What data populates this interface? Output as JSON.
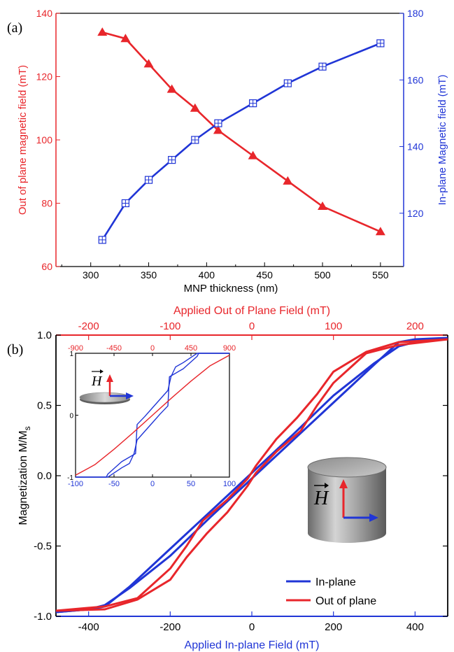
{
  "colors": {
    "out_of_plane": "#e8262b",
    "in_plane": "#2035d6",
    "axis": "#000000",
    "cyl_dark": "#5e5e5e",
    "cyl_light": "#cfcfcf"
  },
  "chart_data": [
    {
      "panel_label": "(a)",
      "type": "line",
      "xlabel": "MNP thickness (nm)",
      "xlim": [
        270,
        570
      ],
      "xticks": [
        300,
        350,
        400,
        450,
        500,
        550
      ],
      "ylabel_left": "Out of plane magnetic field (mT)",
      "ylim_left": [
        60,
        140
      ],
      "yticks_left": [
        60,
        80,
        100,
        120,
        140
      ],
      "ylabel_right": "In-plane Magnetic field (mT)",
      "ylim_right": [
        104,
        180
      ],
      "yticks_right": [
        120,
        140,
        160,
        180
      ],
      "series": [
        {
          "axis": "left",
          "marker": "filled-triangle",
          "x": [
            310,
            330,
            350,
            370,
            390,
            410,
            440,
            470,
            500,
            550
          ],
          "values": [
            134,
            132,
            124,
            116,
            110,
            103,
            95,
            87,
            79,
            71
          ]
        },
        {
          "axis": "right",
          "marker": "boxed-cross",
          "x": [
            310,
            330,
            350,
            370,
            390,
            410,
            440,
            470,
            500,
            550
          ],
          "values": [
            112,
            123,
            130,
            136,
            142,
            147,
            153,
            159,
            164,
            171
          ]
        }
      ]
    },
    {
      "panel_label": "(b)",
      "type": "line",
      "xlabel_bottom": "Applied In-plane Field (mT)",
      "xlim_bottom": [
        -480,
        480
      ],
      "xticks_bottom": [
        -400,
        -200,
        0,
        200,
        400
      ],
      "xlabel_top": "Applied Out of Plane Field (mT)",
      "xlim_top": [
        -240,
        240
      ],
      "xticks_top": [
        -200,
        -100,
        0,
        100,
        200
      ],
      "ylabel": "Magnetization M/M",
      "ylabel_sub": "s",
      "ylim": [
        -1.0,
        1.0
      ],
      "yticks": [
        "1.0",
        "0.5",
        "0.0",
        "-0.5",
        "-1.0"
      ],
      "legend_position": "bottom-right",
      "field_symbol": "H",
      "series": [
        {
          "name": "In-plane",
          "axis": "bottom",
          "branch_desc": [
            [
              480,
              0.98
            ],
            [
              400,
              0.97
            ],
            [
              360,
              0.95
            ],
            [
              300,
              0.79
            ],
            [
              200,
              0.52
            ],
            [
              100,
              0.25
            ],
            [
              0,
              -0.02
            ],
            [
              -100,
              -0.29
            ],
            [
              -200,
              -0.57
            ],
            [
              -300,
              -0.8
            ],
            [
              -360,
              -0.92
            ],
            [
              -400,
              -0.95
            ],
            [
              -480,
              -0.97
            ]
          ],
          "branch_asc": [
            [
              -480,
              -0.97
            ],
            [
              -400,
              -0.95
            ],
            [
              -360,
              -0.93
            ],
            [
              -300,
              -0.79
            ],
            [
              -200,
              -0.52
            ],
            [
              -100,
              -0.25
            ],
            [
              0,
              0.02
            ],
            [
              100,
              0.29
            ],
            [
              200,
              0.57
            ],
            [
              300,
              0.8
            ],
            [
              360,
              0.92
            ],
            [
              400,
              0.95
            ],
            [
              480,
              0.98
            ]
          ]
        },
        {
          "name": "Out of plane",
          "axis": "top",
          "branch_desc": [
            [
              240,
              0.97
            ],
            [
              180,
              0.95
            ],
            [
              140,
              0.88
            ],
            [
              100,
              0.74
            ],
            [
              80,
              0.58
            ],
            [
              55,
              0.41
            ],
            [
              30,
              0.26
            ],
            [
              5,
              0.07
            ],
            [
              -5,
              -0.02
            ],
            [
              -30,
              -0.17
            ],
            [
              -60,
              -0.32
            ],
            [
              -80,
              -0.5
            ],
            [
              -100,
              -0.66
            ],
            [
              -140,
              -0.87
            ],
            [
              -180,
              -0.93
            ],
            [
              -240,
              -0.96
            ]
          ],
          "branch_asc": [
            [
              -240,
              -0.96
            ],
            [
              -180,
              -0.95
            ],
            [
              -140,
              -0.88
            ],
            [
              -100,
              -0.74
            ],
            [
              -80,
              -0.58
            ],
            [
              -55,
              -0.41
            ],
            [
              -30,
              -0.26
            ],
            [
              -5,
              -0.07
            ],
            [
              5,
              0.02
            ],
            [
              30,
              0.17
            ],
            [
              60,
              0.32
            ],
            [
              80,
              0.5
            ],
            [
              100,
              0.66
            ],
            [
              140,
              0.87
            ],
            [
              180,
              0.93
            ],
            [
              240,
              0.97
            ]
          ]
        }
      ],
      "inset": {
        "xlim_bottom": [
          -100,
          100
        ],
        "xticks_bottom": [
          -100,
          -50,
          0,
          50,
          100
        ],
        "xlim_top": [
          -900,
          900
        ],
        "xticks_top": [
          -900,
          -450,
          0,
          450,
          900
        ],
        "ylim": [
          -1,
          1
        ],
        "yticks": [
          -1,
          0,
          1
        ],
        "series": [
          {
            "name": "In-plane",
            "axis": "bottom",
            "branch_desc": [
              [
                100,
                1.0
              ],
              [
                60,
                1.0
              ],
              [
                58,
                0.95
              ],
              [
                40,
                0.75
              ],
              [
                22,
                0.62
              ],
              [
                20,
                0.15
              ],
              [
                10,
                0.02
              ],
              [
                0,
                -0.12
              ],
              [
                -20,
                -0.4
              ],
              [
                -24,
                -0.62
              ],
              [
                -30,
                -0.78
              ],
              [
                -40,
                -0.85
              ],
              [
                -52,
                -0.95
              ],
              [
                -58,
                -1.0
              ],
              [
                -100,
                -1.0
              ]
            ],
            "branch_asc": [
              [
                -100,
                -1.0
              ],
              [
                -60,
                -1.0
              ],
              [
                -58,
                -0.95
              ],
              [
                -40,
                -0.75
              ],
              [
                -22,
                -0.62
              ],
              [
                -20,
                -0.15
              ],
              [
                -10,
                -0.02
              ],
              [
                0,
                0.12
              ],
              [
                20,
                0.4
              ],
              [
                24,
                0.62
              ],
              [
                30,
                0.78
              ],
              [
                40,
                0.85
              ],
              [
                52,
                0.95
              ],
              [
                58,
                1.0
              ],
              [
                100,
                1.0
              ]
            ]
          },
          {
            "name": "Out of plane",
            "axis": "top",
            "points": [
              [
                -900,
                -0.97
              ],
              [
                -675,
                -0.8
              ],
              [
                -450,
                -0.55
              ],
              [
                -225,
                -0.28
              ],
              [
                0,
                0.0
              ],
              [
                225,
                0.28
              ],
              [
                450,
                0.55
              ],
              [
                675,
                0.8
              ],
              [
                900,
                0.97
              ]
            ]
          }
        ]
      }
    }
  ]
}
